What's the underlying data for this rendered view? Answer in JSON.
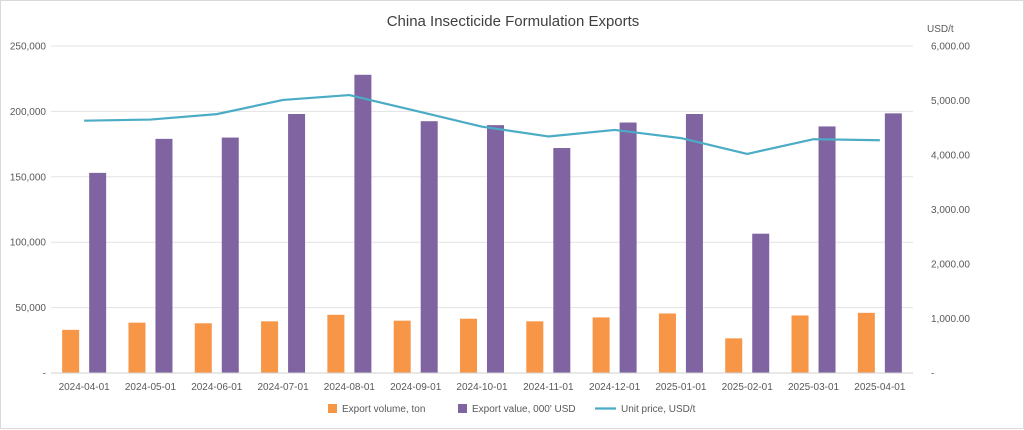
{
  "chart_data": {
    "type": "bar",
    "title": "China Insecticide Formulation Exports",
    "categories": [
      "2024-04-01",
      "2024-05-01",
      "2024-06-01",
      "2024-07-01",
      "2024-08-01",
      "2024-09-01",
      "2024-10-01",
      "2024-11-01",
      "2024-12-01",
      "2025-01-01",
      "2025-02-01",
      "2025-03-01",
      "2025-04-01"
    ],
    "series": [
      {
        "name": "Export volume, ton",
        "kind": "bar",
        "axis": "left",
        "color": "#F79646",
        "values": [
          33000,
          38500,
          38000,
          39500,
          44500,
          40000,
          41500,
          39500,
          42500,
          45500,
          26500,
          44000,
          46000
        ]
      },
      {
        "name": "Export value, 000' USD",
        "kind": "bar",
        "axis": "left",
        "color": "#8064A2",
        "values": [
          153000,
          179000,
          180000,
          198000,
          228000,
          192500,
          189500,
          172000,
          191500,
          198000,
          106500,
          188500,
          198500
        ]
      },
      {
        "name": "Unit price, USD/t",
        "kind": "line",
        "axis": "right",
        "color": "#4BACC6",
        "values": [
          4630,
          4650,
          4750,
          5010,
          5100,
          4810,
          4520,
          4340,
          4460,
          4310,
          4020,
          4290,
          4270
        ]
      }
    ],
    "y_left": {
      "min": 0,
      "max": 250000,
      "ticks": [
        "-",
        "50,000",
        "100,000",
        "150,000",
        "200,000",
        "250,000"
      ]
    },
    "y_right": {
      "min": 0,
      "max": 6000,
      "label": "USD/t",
      "ticks": [
        "-",
        "1,000.00",
        "2,000.00",
        "3,000.00",
        "4,000.00",
        "5,000.00",
        "6,000.00"
      ]
    },
    "grid": true,
    "legend_position": "bottom"
  }
}
